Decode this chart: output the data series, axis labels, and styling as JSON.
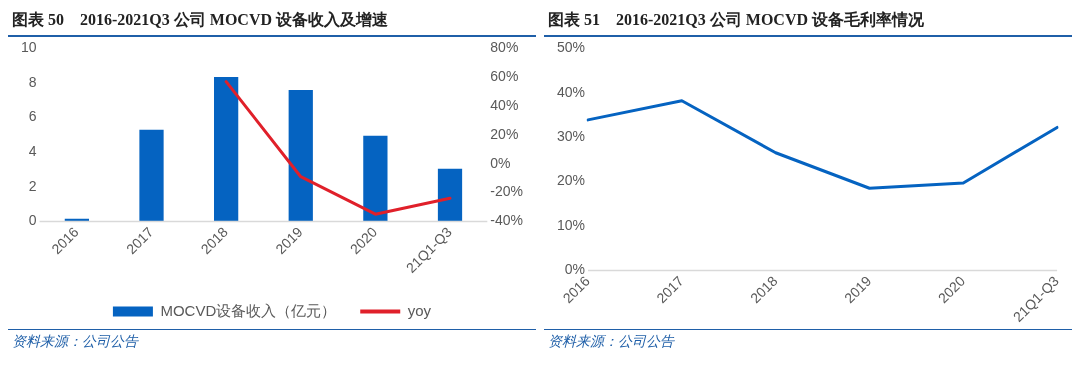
{
  "chart_data": [
    {
      "type": "bar",
      "title": "图表 50　2016-2021Q3 公司 MOCVD 设备收入及增速",
      "categories": [
        "2016",
        "2017",
        "2018",
        "2019",
        "2020",
        "21Q1-Q3"
      ],
      "series": [
        {
          "name": "MOCVD设备收入（亿元）",
          "type": "bar",
          "color": "#0563c1",
          "values": [
            0.15,
            5.3,
            8.35,
            7.6,
            4.95,
            3.05
          ]
        },
        {
          "name": "yoy",
          "type": "line",
          "axis": "y2",
          "color": "#e0202a",
          "values": [
            null,
            null,
            57,
            -9,
            -35,
            -24
          ]
        }
      ],
      "ylim": [
        0,
        10
      ],
      "yticks": [
        0,
        2,
        4,
        6,
        8,
        10
      ],
      "y2lim": [
        -40,
        80
      ],
      "y2ticks": [
        {
          "value": -40,
          "label": "-40%"
        },
        {
          "value": -20,
          "label": "-20%"
        },
        {
          "value": 0,
          "label": "0%"
        },
        {
          "value": 20,
          "label": "20%"
        },
        {
          "value": 40,
          "label": "40%"
        },
        {
          "value": 60,
          "label": "60%"
        },
        {
          "value": 80,
          "label": "80%"
        }
      ],
      "grid": false,
      "legend": "bottom",
      "marker": "none",
      "line_style": "solid",
      "annotations": [
        "资料来源：公司公告"
      ]
    },
    {
      "type": "line",
      "title": "图表 51　2016-2021Q3 公司 MOCVD 设备毛利率情况",
      "categories": [
        "2016",
        "2017",
        "2018",
        "2019",
        "2020",
        "21Q1-Q3"
      ],
      "series": [
        {
          "color": "#0563c1",
          "values": [
            33.9,
            38.2,
            26.5,
            18.5,
            19.7,
            32.2
          ]
        }
      ],
      "ylim": [
        0,
        50
      ],
      "yticks": [
        {
          "value": 0,
          "label": "0%"
        },
        {
          "value": 10,
          "label": "10%"
        },
        {
          "value": 20,
          "label": "20%"
        },
        {
          "value": 30,
          "label": "30%"
        },
        {
          "value": 40,
          "label": "40%"
        },
        {
          "value": 50,
          "label": "50%"
        }
      ],
      "grid": false,
      "legend": false,
      "marker": "none",
      "line_style": "solid",
      "annotations": [
        "资料来源：公司公告"
      ]
    }
  ]
}
